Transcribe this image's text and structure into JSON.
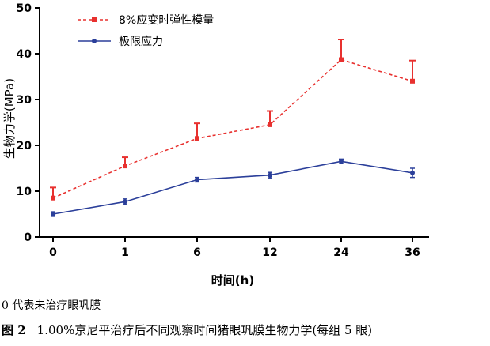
{
  "chart_data": {
    "type": "line",
    "categories": [
      "0",
      "1",
      "6",
      "12",
      "24",
      "36"
    ],
    "xlabel": "时间(h)",
    "ylabel": "生物力学(MPa)",
    "ylim": [
      0,
      50
    ],
    "yticks": [
      "0",
      "10",
      "20",
      "30",
      "40",
      "50"
    ],
    "grid": false,
    "legend_position": "top-left",
    "series": [
      {
        "name": "8%应变时弹性模量",
        "values": [
          8.5,
          15.5,
          21.5,
          24.5,
          38.7,
          34.0
        ],
        "error": [
          2.3,
          1.9,
          3.3,
          3.0,
          4.4,
          4.5
        ],
        "color": "#e8312f",
        "line_style": "dashed",
        "marker": "square"
      },
      {
        "name": "极限应力",
        "values": [
          5.0,
          7.7,
          12.5,
          13.5,
          16.5,
          14.0
        ],
        "error": [
          0.5,
          0.6,
          0.5,
          0.6,
          0.5,
          1.0
        ],
        "color": "#2b3f9a",
        "line_style": "solid",
        "marker": "circle"
      }
    ]
  },
  "note": "0 代表未治疗眼巩膜",
  "caption": {
    "figure_label": "图 2",
    "text": "1.00%京尼平治疗后不同观察时间猪眼巩膜生物力学(每组 5 眼)"
  }
}
